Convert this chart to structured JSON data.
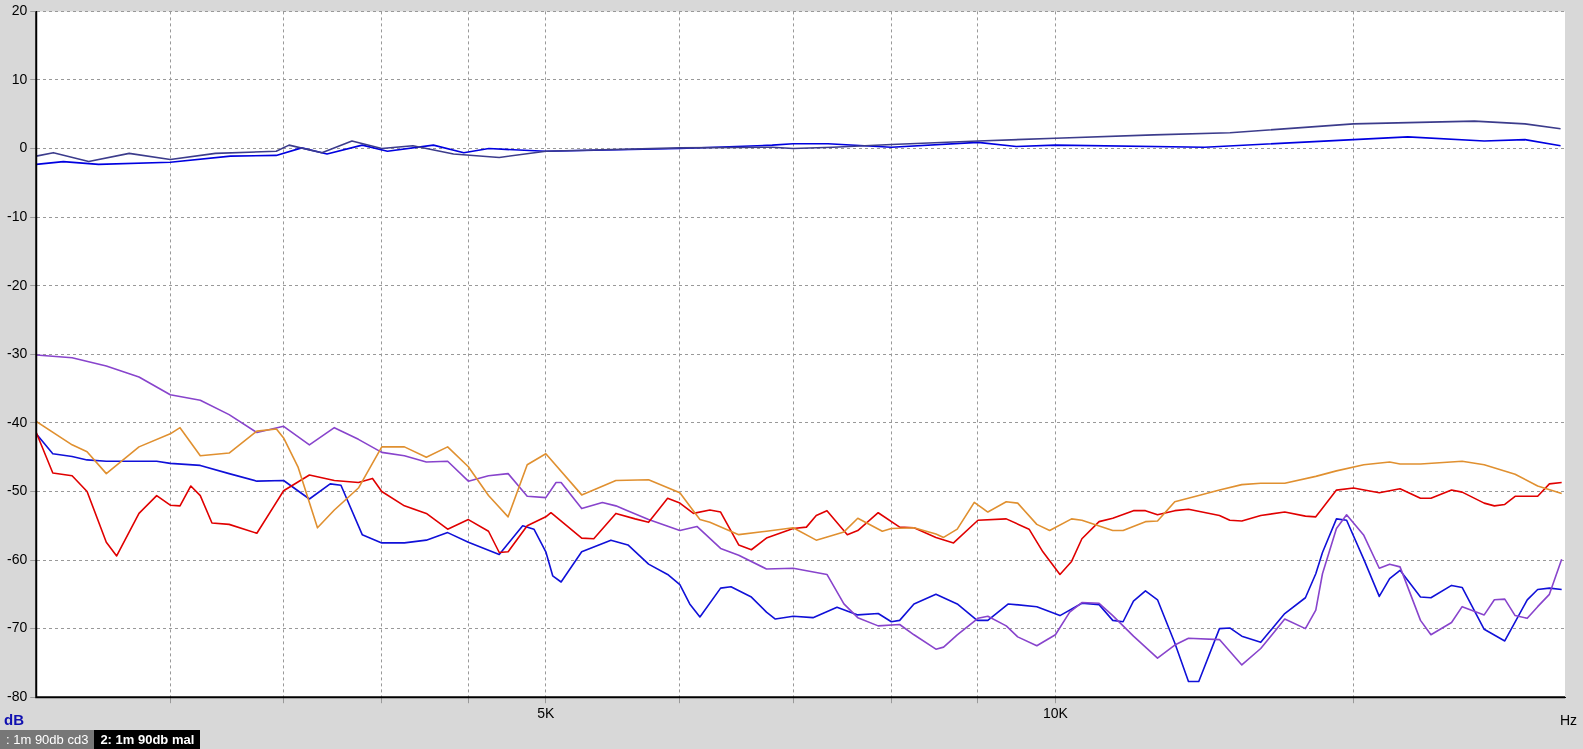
{
  "chart_data": {
    "type": "line",
    "xlabel": "Hz",
    "ylabel": "dB",
    "log": "x",
    "grid": true,
    "legend": false,
    "marker": "none",
    "line_style": "solid",
    "xlim": [
      2500,
      20000
    ],
    "ylim": [
      -80,
      20
    ],
    "xticks": [
      {
        "value": 3000,
        "label": null
      },
      {
        "value": 3500,
        "label": null
      },
      {
        "value": 4000,
        "label": null
      },
      {
        "value": 4500,
        "label": null
      },
      {
        "value": 5000,
        "label": "5K"
      },
      {
        "value": 6000,
        "label": null
      },
      {
        "value": 7000,
        "label": null
      },
      {
        "value": 8000,
        "label": null
      },
      {
        "value": 9000,
        "label": null
      },
      {
        "value": 10000,
        "label": "10K"
      },
      {
        "value": 15000,
        "label": null
      }
    ],
    "yticks": [
      -80,
      -70,
      -60,
      -50,
      -40,
      -30,
      -20,
      -10,
      0,
      10,
      20
    ],
    "annotations": [
      ": 1m 90db cd3",
      "2: 1m 90db mal"
    ],
    "series": [
      {
        "color": "#3c3c8c",
        "x": [
          2500,
          2559,
          2685,
          2837,
          3000,
          3190,
          3465,
          3526,
          3687,
          3841,
          4000,
          4173,
          4410,
          4693,
          5000,
          6000,
          6803,
          7000,
          7390,
          8000,
          9000,
          10000,
          11430,
          12680,
          15000,
          17680,
          18940,
          19880
        ],
        "values": [
          -1.1,
          -0.6,
          -1.9,
          -0.7,
          -1.6,
          -0.7,
          -0.4,
          0.5,
          -0.6,
          1.1,
          0,
          0.4,
          -0.8,
          -1.3,
          -0.4,
          0.1,
          0.2,
          0,
          0.2,
          0.6,
          1.1,
          1.5,
          2.0,
          2.3,
          3.6,
          4.0,
          3.6,
          2.9
        ]
      },
      {
        "color": "#0000e0",
        "x": [
          2500,
          2594,
          2721,
          3000,
          3256,
          3465,
          3587,
          3713,
          3895,
          4031,
          4291,
          4472,
          4627,
          5000,
          6000,
          6803,
          7000,
          7339,
          8000,
          9000,
          9482,
          10000,
          12250,
          15000,
          16150,
          17920,
          18940,
          19880
        ],
        "values": [
          -2.3,
          -1.9,
          -2.3,
          -2.0,
          -1.1,
          -1.0,
          0.1,
          -0.8,
          0.5,
          -0.4,
          0.5,
          -0.6,
          0,
          -0.4,
          0,
          0.5,
          0.7,
          0.7,
          0.2,
          0.9,
          0.3,
          0.5,
          0.2,
          1.3,
          1.7,
          1.1,
          1.3,
          0.4
        ]
      },
      {
        "color": "#e09030",
        "x": [
          2500,
          2625,
          2679,
          2750,
          2875,
          3000,
          3040,
          3125,
          3250,
          3375,
          3466,
          3500,
          3569,
          3665,
          3750,
          3875,
          4000,
          4125,
          4250,
          4375,
          4500,
          4625,
          4750,
          4875,
          5000,
          5250,
          5500,
          5750,
          6000,
          6166,
          6250,
          6500,
          6750,
          7000,
          7223,
          7500,
          7643,
          7902,
          8000,
          8250,
          8500,
          8589,
          8750,
          8955,
          9122,
          9353,
          9500,
          9750,
          9922,
          10222,
          10367,
          10811,
          10964,
          11303,
          11490,
          11763,
          12153,
          12500,
          12886,
          13222,
          13661,
          14250,
          14656,
          15212,
          15756,
          15980,
          16431,
          17389,
          17918,
          18688,
          19270,
          19910
        ],
        "values": [
          -39.8,
          -43.2,
          -44.2,
          -47.4,
          -43.5,
          -41.6,
          -40.7,
          -44.8,
          -44.4,
          -41.2,
          -40.9,
          -42.2,
          -46.4,
          -55.3,
          -52.7,
          -49.5,
          -43.5,
          -43.5,
          -45.0,
          -43.5,
          -46.4,
          -50.6,
          -53.7,
          -46.1,
          -44.5,
          -50.5,
          -48.4,
          -48.3,
          -50.2,
          -54.1,
          -54.5,
          -56.3,
          -55.8,
          -55.3,
          -57.1,
          -55.9,
          -53.9,
          -55.8,
          -55.4,
          -55.3,
          -56.2,
          -56.7,
          -55.5,
          -51.6,
          -53.0,
          -51.5,
          -51.7,
          -54.8,
          -55.7,
          -54.0,
          -54.2,
          -55.7,
          -55.7,
          -54.4,
          -54.3,
          -51.5,
          -50.6,
          -49.8,
          -49.0,
          -48.8,
          -48.8,
          -47.8,
          -47.0,
          -46.1,
          -45.7,
          -46.0,
          -46.0,
          -45.6,
          -46.1,
          -47.5,
          -49.2,
          -50.3
        ]
      },
      {
        "color": "#e00000",
        "x": [
          2500,
          2557,
          2625,
          2679,
          2750,
          2789,
          2875,
          2945,
          3000,
          3040,
          3085,
          3125,
          3175,
          3250,
          3375,
          3500,
          3625,
          3750,
          3875,
          3950,
          4000,
          4125,
          4250,
          4375,
          4500,
          4625,
          4693,
          4750,
          4875,
          5000,
          5035,
          5250,
          5337,
          5500,
          5646,
          5750,
          5901,
          6000,
          6112,
          6250,
          6342,
          6500,
          6613,
          6750,
          7000,
          7127,
          7223,
          7329,
          7535,
          7643,
          7858,
          8091,
          8250,
          8500,
          8706,
          9000,
          9353,
          9648,
          9831,
          10062,
          10222,
          10367,
          10612,
          10811,
          11120,
          11303,
          11490,
          11763,
          11984,
          12500,
          12677,
          12886,
          13222,
          13661,
          14050,
          14250,
          14656,
          15000,
          15535,
          15980,
          16431,
          16666,
          17140,
          17389,
          17918,
          18168,
          18427,
          18688,
          19270,
          19580,
          19910
        ],
        "values": [
          -41.4,
          -47.3,
          -47.7,
          -50.0,
          -57.4,
          -59.4,
          -53.2,
          -50.6,
          -52.0,
          -52.1,
          -49.2,
          -50.6,
          -54.6,
          -54.8,
          -56.1,
          -49.9,
          -47.6,
          -48.4,
          -48.7,
          -48.1,
          -50.0,
          -52.1,
          -53.2,
          -55.5,
          -54.1,
          -55.8,
          -58.9,
          -58.8,
          -55.0,
          -53.7,
          -53.1,
          -56.8,
          -56.9,
          -53.2,
          -54.0,
          -54.5,
          -51.0,
          -51.7,
          -53.2,
          -52.7,
          -53.0,
          -57.8,
          -58.5,
          -56.8,
          -55.4,
          -55.2,
          -53.5,
          -52.8,
          -56.3,
          -55.7,
          -53.1,
          -55.2,
          -55.3,
          -56.7,
          -57.5,
          -54.2,
          -54.0,
          -55.5,
          -58.8,
          -62.1,
          -60.2,
          -56.9,
          -54.4,
          -53.9,
          -52.8,
          -52.8,
          -53.4,
          -52.8,
          -52.6,
          -53.5,
          -54.2,
          -54.3,
          -53.5,
          -53.0,
          -53.6,
          -53.7,
          -49.8,
          -49.5,
          -50.2,
          -49.6,
          -51.0,
          -51.0,
          -49.8,
          -50.1,
          -51.7,
          -52.1,
          -51.9,
          -50.7,
          -50.7,
          -48.9,
          -48.7
        ]
      },
      {
        "color": "#8844cc",
        "x": [
          2500,
          2625,
          2750,
          2875,
          3000,
          3125,
          3250,
          3375,
          3500,
          3625,
          3750,
          3875,
          4000,
          4125,
          4250,
          4375,
          4500,
          4625,
          4750,
          4875,
          5000,
          5070,
          5105,
          5250,
          5400,
          5500,
          5750,
          6000,
          6141,
          6342,
          6500,
          6750,
          7000,
          7329,
          7500,
          7643,
          7858,
          8091,
          8250,
          8500,
          8589,
          8750,
          9000,
          9122,
          9353,
          9500,
          9750,
          10000,
          10196,
          10367,
          10612,
          10811,
          11120,
          11490,
          11763,
          11984,
          12500,
          12886,
          13222,
          13661,
          14050,
          14250,
          14380,
          14656,
          14860,
          15212,
          15535,
          15756,
          15980,
          16431,
          16666,
          17140,
          17389,
          17918,
          18168,
          18427,
          18688,
          18999,
          19270,
          19580,
          19910
        ],
        "values": [
          -30.1,
          -30.5,
          -31.7,
          -33.3,
          -35.9,
          -36.7,
          -38.8,
          -41.4,
          -40.5,
          -43.2,
          -40.7,
          -42.4,
          -44.3,
          -44.8,
          -45.7,
          -45.6,
          -48.5,
          -47.7,
          -47.4,
          -50.7,
          -50.9,
          -48.7,
          -48.7,
          -52.5,
          -51.6,
          -52.1,
          -54.1,
          -55.7,
          -55.1,
          -58.3,
          -59.3,
          -61.3,
          -61.2,
          -62.1,
          -66.4,
          -68.4,
          -69.6,
          -69.4,
          -70.9,
          -73.0,
          -72.7,
          -70.9,
          -68.5,
          -68.2,
          -69.6,
          -71.2,
          -72.5,
          -70.9,
          -67.6,
          -66.2,
          -66.3,
          -68.1,
          -71.1,
          -74.3,
          -72.4,
          -71.4,
          -71.6,
          -75.3,
          -72.9,
          -68.6,
          -70.0,
          -67.3,
          -62.0,
          -55.4,
          -53.4,
          -56.4,
          -61.2,
          -60.6,
          -61.0,
          -68.8,
          -70.9,
          -69.1,
          -66.8,
          -68.0,
          -65.8,
          -65.7,
          -68.1,
          -68.5,
          -66.8,
          -65.0,
          -59.9
        ]
      },
      {
        "color": "#1010d8",
        "x": [
          2500,
          2557,
          2625,
          2679,
          2750,
          2875,
          2945,
          3000,
          3125,
          3250,
          3375,
          3500,
          3625,
          3729,
          3784,
          3895,
          4000,
          4125,
          4250,
          4375,
          4500,
          4693,
          4845,
          4920,
          5000,
          5047,
          5105,
          5250,
          5463,
          5591,
          5750,
          5901,
          6000,
          6081,
          6166,
          6342,
          6432,
          6613,
          6750,
          6832,
          7000,
          7191,
          7430,
          7643,
          7858,
          8000,
          8091,
          8250,
          8500,
          8750,
          8990,
          9122,
          9380,
          9750,
          10062,
          10367,
          10612,
          10811,
          10964,
          11120,
          11303,
          11490,
          11763,
          11984,
          12153,
          12500,
          12677,
          12886,
          13222,
          13661,
          14050,
          14250,
          14380,
          14656,
          14860,
          15212,
          15535,
          15756,
          15980,
          16431,
          16666,
          17140,
          17389,
          17918,
          18427,
          18999,
          19270,
          19580,
          19910
        ],
        "values": [
          -41.6,
          -44.5,
          -44.9,
          -45.4,
          -45.6,
          -45.6,
          -45.6,
          -45.9,
          -46.2,
          -47.4,
          -48.5,
          -48.4,
          -51.1,
          -48.9,
          -49.1,
          -56.3,
          -57.5,
          -57.5,
          -57.1,
          -56.0,
          -57.4,
          -59.2,
          -55.0,
          -55.5,
          -58.8,
          -62.3,
          -63.2,
          -58.8,
          -57.1,
          -57.8,
          -60.6,
          -62.1,
          -63.6,
          -66.4,
          -68.3,
          -64.1,
          -63.9,
          -65.4,
          -67.6,
          -68.6,
          -68.2,
          -68.4,
          -66.9,
          -68.0,
          -67.8,
          -69.0,
          -68.8,
          -66.4,
          -65.0,
          -66.4,
          -68.8,
          -68.8,
          -66.4,
          -66.8,
          -68.1,
          -66.3,
          -66.5,
          -68.8,
          -69.0,
          -66.0,
          -64.5,
          -65.8,
          -72.1,
          -77.7,
          -77.7,
          -70.0,
          -69.9,
          -71.1,
          -72.0,
          -67.8,
          -65.5,
          -62.0,
          -58.9,
          -54.0,
          -54.2,
          -59.9,
          -65.3,
          -62.7,
          -61.5,
          -65.4,
          -65.5,
          -63.7,
          -64.0,
          -70.1,
          -71.8,
          -65.8,
          -64.3,
          -64.1,
          -64.3
        ]
      }
    ]
  }
}
